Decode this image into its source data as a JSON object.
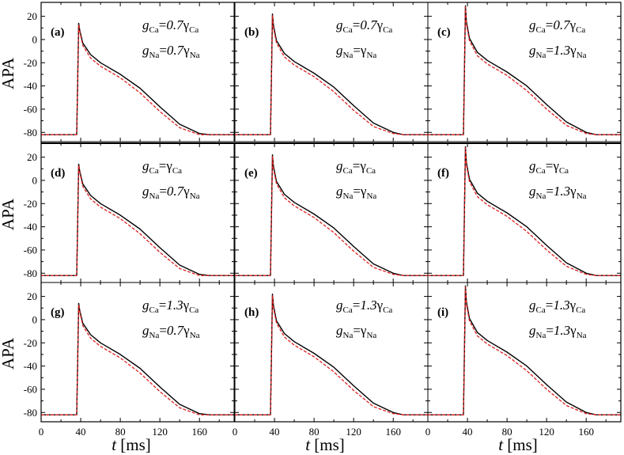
{
  "chart_data": {
    "type": "line",
    "shared": {
      "ylabel": "APA",
      "xlabel_var": "t",
      "xlabel_unit": "[ms]",
      "xlim": [
        0,
        195
      ],
      "ylim": [
        -88,
        32
      ],
      "xticks": [
        0,
        40,
        80,
        120,
        160
      ],
      "xtick_labels": [
        "0",
        "40",
        "80",
        "120",
        "160"
      ],
      "yticks": [
        20,
        0,
        -20,
        -40,
        -60,
        -80
      ],
      "ytick_labels": [
        "20",
        "0",
        "-20",
        "-40",
        "-60",
        "-80"
      ],
      "series_colors": {
        "solid": "#000000",
        "dashed": "#e02020"
      },
      "series_styles": [
        "solid",
        "dashed"
      ]
    },
    "panels": [
      {
        "label": "(a)",
        "ca_factor": "0.7",
        "na_factor": "0.7",
        "series": [
          {
            "style": "solid",
            "x": [
              0,
              36,
              38,
              39,
              42,
              50,
              60,
              80,
              100,
              120,
              140,
              160,
              170,
              180,
              195
            ],
            "y": [
              -82,
              -82,
              14,
              8,
              -3,
              -13,
              -20,
              -30,
              -42,
              -58,
              -73,
              -81,
              -82,
              -82,
              -82
            ]
          },
          {
            "style": "dashed",
            "x": [
              0,
              36,
              38,
              39,
              42,
              50,
              60,
              80,
              100,
              120,
              140,
              160,
              170,
              180,
              195
            ],
            "y": [
              -82,
              -82,
              13,
              7,
              -5,
              -16,
              -23,
              -33,
              -46,
              -62,
              -76,
              -82,
              -82,
              -82,
              -82
            ]
          }
        ]
      },
      {
        "label": "(b)",
        "ca_factor": "0.7",
        "na_factor": "",
        "series": [
          {
            "style": "solid",
            "x": [
              0,
              36,
              38,
              39,
              42,
              50,
              60,
              80,
              100,
              120,
              140,
              160,
              170,
              180,
              195
            ],
            "y": [
              -82,
              -82,
              22,
              12,
              -1,
              -12,
              -19,
              -29,
              -41,
              -57,
              -72,
              -80,
              -82,
              -82,
              -82
            ]
          },
          {
            "style": "dashed",
            "x": [
              0,
              36,
              38,
              39,
              42,
              50,
              60,
              80,
              100,
              120,
              140,
              160,
              170,
              180,
              195
            ],
            "y": [
              -82,
              -82,
              21,
              10,
              -3,
              -15,
              -22,
              -32,
              -45,
              -61,
              -75,
              -81,
              -82,
              -82,
              -82
            ]
          }
        ]
      },
      {
        "label": "(c)",
        "ca_factor": "0.7",
        "na_factor": "1.3",
        "series": [
          {
            "style": "solid",
            "x": [
              0,
              36,
              38,
              39,
              42,
              50,
              60,
              80,
              100,
              120,
              140,
              160,
              170,
              180,
              195
            ],
            "y": [
              -82,
              -82,
              29,
              15,
              1,
              -11,
              -18,
              -28,
              -40,
              -56,
              -71,
              -80,
              -82,
              -82,
              -82
            ]
          },
          {
            "style": "dashed",
            "x": [
              0,
              36,
              38,
              39,
              42,
              50,
              60,
              80,
              100,
              120,
              140,
              160,
              170,
              180,
              195
            ],
            "y": [
              -82,
              -82,
              28,
              13,
              -1,
              -14,
              -21,
              -31,
              -44,
              -60,
              -74,
              -81,
              -82,
              -82,
              -82
            ]
          }
        ]
      },
      {
        "label": "(d)",
        "ca_factor": "",
        "na_factor": "0.7",
        "series": [
          {
            "style": "solid",
            "x": [
              0,
              36,
              38,
              39,
              42,
              50,
              60,
              80,
              100,
              120,
              140,
              160,
              170,
              180,
              195
            ],
            "y": [
              -82,
              -82,
              14,
              8,
              -3,
              -13,
              -20,
              -30,
              -42,
              -58,
              -73,
              -81,
              -82,
              -82,
              -82
            ]
          },
          {
            "style": "dashed",
            "x": [
              0,
              36,
              38,
              39,
              42,
              50,
              60,
              80,
              100,
              120,
              140,
              160,
              170,
              180,
              195
            ],
            "y": [
              -82,
              -82,
              13,
              7,
              -5,
              -16,
              -23,
              -33,
              -46,
              -62,
              -76,
              -82,
              -82,
              -82,
              -82
            ]
          }
        ]
      },
      {
        "label": "(e)",
        "ca_factor": "",
        "na_factor": "",
        "series": [
          {
            "style": "solid",
            "x": [
              0,
              36,
              38,
              39,
              42,
              50,
              60,
              80,
              100,
              120,
              140,
              160,
              170,
              180,
              195
            ],
            "y": [
              -82,
              -82,
              22,
              12,
              -1,
              -12,
              -19,
              -29,
              -41,
              -57,
              -72,
              -80,
              -82,
              -82,
              -82
            ]
          },
          {
            "style": "dashed",
            "x": [
              0,
              36,
              38,
              39,
              42,
              50,
              60,
              80,
              100,
              120,
              140,
              160,
              170,
              180,
              195
            ],
            "y": [
              -82,
              -82,
              21,
              10,
              -3,
              -15,
              -22,
              -32,
              -45,
              -61,
              -75,
              -81,
              -82,
              -82,
              -82
            ]
          }
        ]
      },
      {
        "label": "(f)",
        "ca_factor": "",
        "na_factor": "1.3",
        "series": [
          {
            "style": "solid",
            "x": [
              0,
              36,
              38,
              39,
              42,
              50,
              60,
              80,
              100,
              120,
              140,
              160,
              170,
              180,
              195
            ],
            "y": [
              -82,
              -82,
              29,
              15,
              1,
              -11,
              -18,
              -28,
              -40,
              -56,
              -71,
              -80,
              -82,
              -82,
              -82
            ]
          },
          {
            "style": "dashed",
            "x": [
              0,
              36,
              38,
              39,
              42,
              50,
              60,
              80,
              100,
              120,
              140,
              160,
              170,
              180,
              195
            ],
            "y": [
              -82,
              -82,
              28,
              13,
              -1,
              -14,
              -21,
              -31,
              -44,
              -60,
              -74,
              -81,
              -82,
              -82,
              -82
            ]
          }
        ]
      },
      {
        "label": "(g)",
        "ca_factor": "1.3",
        "na_factor": "0.7",
        "series": [
          {
            "style": "solid",
            "x": [
              0,
              36,
              38,
              39,
              42,
              50,
              60,
              80,
              100,
              120,
              140,
              160,
              170,
              180,
              195
            ],
            "y": [
              -82,
              -82,
              14,
              8,
              -3,
              -13,
              -20,
              -30,
              -42,
              -58,
              -73,
              -81,
              -82,
              -82,
              -82
            ]
          },
          {
            "style": "dashed",
            "x": [
              0,
              36,
              38,
              39,
              42,
              50,
              60,
              80,
              100,
              120,
              140,
              160,
              170,
              180,
              195
            ],
            "y": [
              -82,
              -82,
              13,
              7,
              -5,
              -16,
              -23,
              -33,
              -46,
              -62,
              -76,
              -82,
              -82,
              -82,
              -82
            ]
          }
        ]
      },
      {
        "label": "(h)",
        "ca_factor": "1.3",
        "na_factor": "",
        "series": [
          {
            "style": "solid",
            "x": [
              0,
              36,
              38,
              39,
              42,
              50,
              60,
              80,
              100,
              120,
              140,
              160,
              170,
              180,
              195
            ],
            "y": [
              -82,
              -82,
              22,
              12,
              -1,
              -12,
              -19,
              -29,
              -41,
              -57,
              -72,
              -80,
              -82,
              -82,
              -82
            ]
          },
          {
            "style": "dashed",
            "x": [
              0,
              36,
              38,
              39,
              42,
              50,
              60,
              80,
              100,
              120,
              140,
              160,
              170,
              180,
              195
            ],
            "y": [
              -82,
              -82,
              21,
              10,
              -3,
              -15,
              -22,
              -32,
              -45,
              -61,
              -75,
              -81,
              -82,
              -82,
              -82
            ]
          }
        ]
      },
      {
        "label": "(i)",
        "ca_factor": "1.3",
        "na_factor": "1.3",
        "series": [
          {
            "style": "solid",
            "x": [
              0,
              36,
              38,
              39,
              42,
              50,
              60,
              80,
              100,
              120,
              140,
              160,
              170,
              180,
              195
            ],
            "y": [
              -82,
              -82,
              29,
              15,
              1,
              -11,
              -18,
              -28,
              -40,
              -56,
              -71,
              -80,
              -82,
              -82,
              -82
            ]
          },
          {
            "style": "dashed",
            "x": [
              0,
              36,
              38,
              39,
              42,
              50,
              60,
              80,
              100,
              120,
              140,
              160,
              170,
              180,
              195
            ],
            "y": [
              -82,
              -82,
              28,
              13,
              -1,
              -14,
              -21,
              -31,
              -44,
              -60,
              -74,
              -81,
              -82,
              -82,
              -82
            ]
          }
        ]
      }
    ]
  }
}
